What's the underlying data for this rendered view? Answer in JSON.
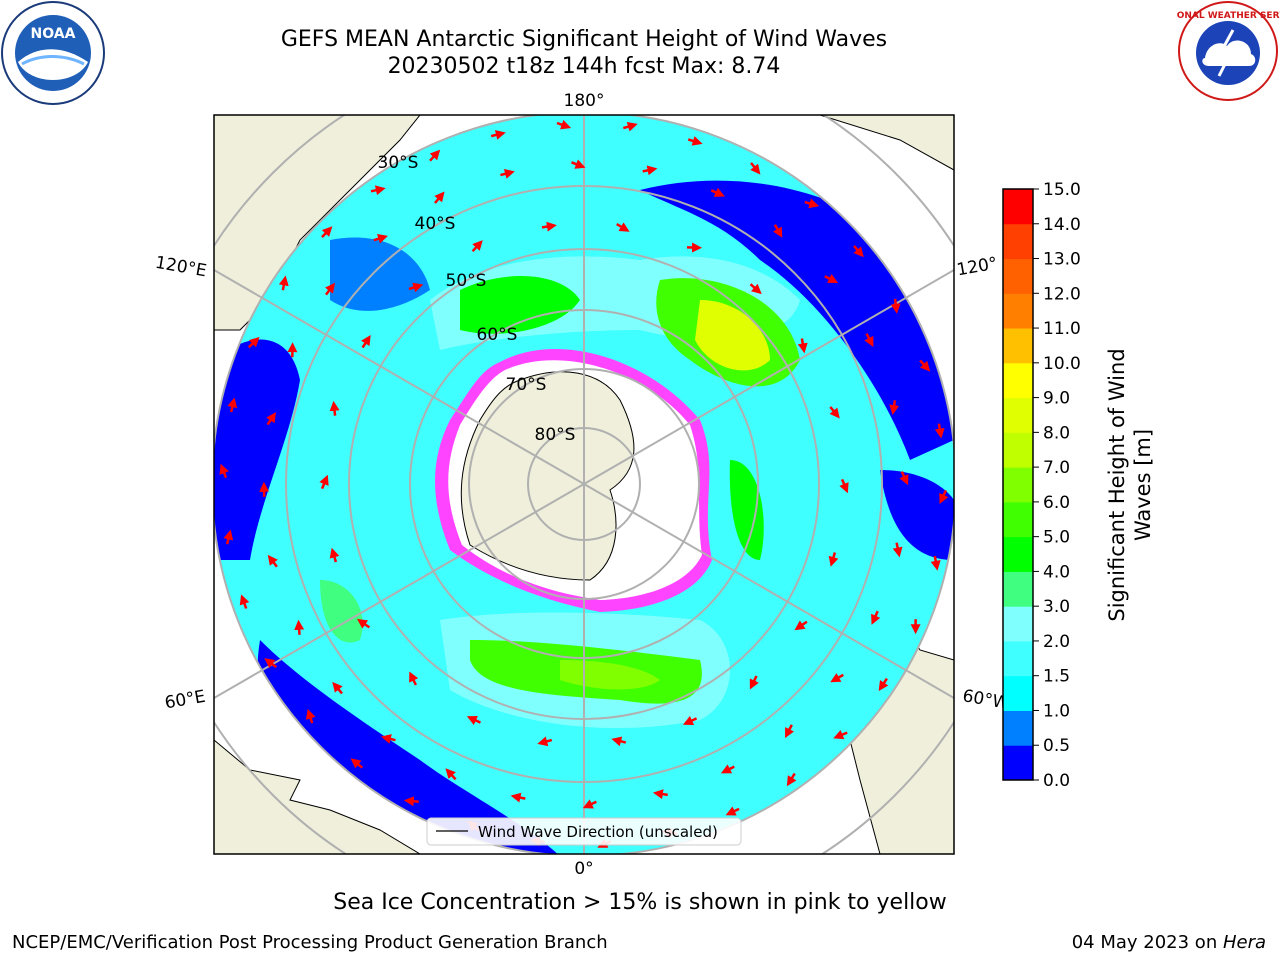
{
  "title": {
    "line1": "GEFS MEAN Antarctic Significant Height of Wind Waves",
    "line2": "20230502 t18z 144h fcst   Max: 8.74"
  },
  "map": {
    "projection": "south-polar-stereographic",
    "longitude_labels": {
      "top": "180°",
      "bottom": "0°",
      "left_upper": "120°E",
      "left_lower": "60°E",
      "right_upper": "120°",
      "right_lower": "60°W"
    },
    "latitude_labels": [
      "30°S",
      "40°S",
      "50°S",
      "60°S",
      "70°S",
      "80°S"
    ],
    "legend_label": "Wind Wave Direction (unscaled)"
  },
  "colorbar": {
    "label": "Significant Height of Wind Waves [m]",
    "label_line1": "Significant Height of Wind",
    "label_line2": "Waves [m]",
    "ticks": [
      "0.0",
      "0.5",
      "1.0",
      "1.5",
      "2.0",
      "3.0",
      "4.0",
      "5.0",
      "6.0",
      "7.0",
      "8.0",
      "9.0",
      "10.0",
      "11.0",
      "12.0",
      "13.0",
      "14.0",
      "15.0"
    ],
    "colors": [
      "#0000ff",
      "#0080ff",
      "#00ffff",
      "#40ffff",
      "#80ffff",
      "#40ff80",
      "#00ff00",
      "#40ff00",
      "#80ff00",
      "#c0ff00",
      "#e0ff00",
      "#ffff00",
      "#ffc000",
      "#ff8000",
      "#ff6000",
      "#ff4000",
      "#ff0000"
    ]
  },
  "ice_note": "Sea Ice Concentration > 15% is shown in pink to yellow",
  "footer": {
    "left": "NCEP/EMC/Verification Post Processing Product Generation Branch",
    "right_date": "04 May 2023 on ",
    "right_machine": "Hera"
  },
  "logos": {
    "noaa": "NOAA",
    "nws": "NATIONAL WEATHER SERVICE"
  }
}
